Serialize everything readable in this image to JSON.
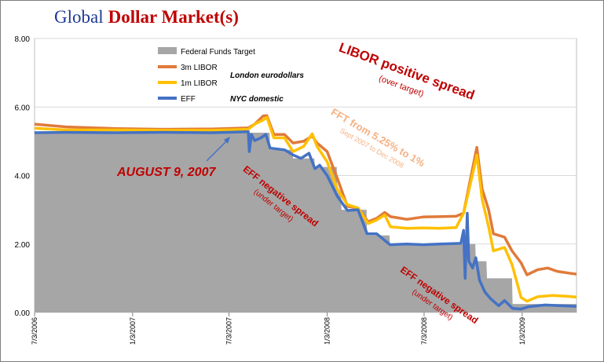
{
  "title": {
    "part1": "Global",
    "part2": "Dollar Market(s)"
  },
  "chart_data": {
    "type": "line",
    "y_axis": {
      "min": 0,
      "max": 8,
      "ticks": [
        "0.00",
        "2.00",
        "4.00",
        "6.00",
        "8.00"
      ]
    },
    "x_axis": {
      "start": "2006-07-03",
      "end": "2009-04-15",
      "ticks": [
        {
          "date": "2006-07-03",
          "label": "7/3/2006"
        },
        {
          "date": "2007-01-03",
          "label": "1/3/2007"
        },
        {
          "date": "2007-07-03",
          "label": "7/3/2007"
        },
        {
          "date": "2008-01-03",
          "label": "1/3/2008"
        },
        {
          "date": "2008-07-03",
          "label": "7/3/2008"
        },
        {
          "date": "2009-01-03",
          "label": "1/3/2009"
        }
      ]
    },
    "gridlines": "horizontal",
    "legend": {
      "placement": "top-left",
      "items": [
        {
          "series": "Federal Funds Target",
          "label": "Federal Funds Target",
          "note": ""
        },
        {
          "series": "3m LIBOR",
          "label": "3m LIBOR",
          "note": "London eurodollars"
        },
        {
          "series": "1m LIBOR",
          "label": "1m LIBOR",
          "note": ""
        },
        {
          "series": "EFF",
          "label": "EFF",
          "note": "NYC domestic"
        }
      ]
    },
    "series": [
      {
        "name": "Federal Funds Target",
        "style": "area",
        "color": "#a6a6a6",
        "points": [
          [
            "2006-07-03",
            5.25
          ],
          [
            "2007-09-17",
            5.25
          ],
          [
            "2007-09-18",
            4.75
          ],
          [
            "2007-10-30",
            4.75
          ],
          [
            "2007-10-31",
            4.5
          ],
          [
            "2007-12-10",
            4.5
          ],
          [
            "2007-12-11",
            4.25
          ],
          [
            "2008-01-21",
            4.25
          ],
          [
            "2008-01-22",
            3.5
          ],
          [
            "2008-01-29",
            3.5
          ],
          [
            "2008-01-30",
            3.0
          ],
          [
            "2008-03-17",
            3.0
          ],
          [
            "2008-03-18",
            2.25
          ],
          [
            "2008-04-29",
            2.25
          ],
          [
            "2008-04-30",
            2.0
          ],
          [
            "2008-10-07",
            2.0
          ],
          [
            "2008-10-08",
            1.5
          ],
          [
            "2008-10-28",
            1.5
          ],
          [
            "2008-10-29",
            1.0
          ],
          [
            "2008-12-15",
            1.0
          ],
          [
            "2008-12-16",
            0.25
          ],
          [
            "2009-04-15",
            0.25
          ]
        ]
      },
      {
        "name": "3m LIBOR",
        "style": "line",
        "color": "#e07a3a",
        "points": [
          [
            "2006-07-03",
            5.5
          ],
          [
            "2006-09-01",
            5.42
          ],
          [
            "2006-12-01",
            5.37
          ],
          [
            "2007-03-01",
            5.35
          ],
          [
            "2007-06-01",
            5.36
          ],
          [
            "2007-08-08",
            5.39
          ],
          [
            "2007-08-20",
            5.5
          ],
          [
            "2007-09-05",
            5.74
          ],
          [
            "2007-09-12",
            5.75
          ],
          [
            "2007-09-25",
            5.2
          ],
          [
            "2007-10-15",
            5.2
          ],
          [
            "2007-10-31",
            4.95
          ],
          [
            "2007-11-20",
            5.0
          ],
          [
            "2007-12-06",
            5.15
          ],
          [
            "2007-12-15",
            4.95
          ],
          [
            "2008-01-03",
            4.7
          ],
          [
            "2008-01-22",
            3.92
          ],
          [
            "2008-02-10",
            3.1
          ],
          [
            "2008-03-01",
            3.05
          ],
          [
            "2008-03-20",
            2.65
          ],
          [
            "2008-04-05",
            2.75
          ],
          [
            "2008-04-20",
            2.92
          ],
          [
            "2008-05-01",
            2.8
          ],
          [
            "2008-06-01",
            2.72
          ],
          [
            "2008-07-01",
            2.79
          ],
          [
            "2008-08-01",
            2.8
          ],
          [
            "2008-09-01",
            2.81
          ],
          [
            "2008-09-15",
            2.9
          ],
          [
            "2008-09-30",
            4.05
          ],
          [
            "2008-10-10",
            4.82
          ],
          [
            "2008-10-20",
            3.6
          ],
          [
            "2008-11-01",
            3.0
          ],
          [
            "2008-11-10",
            2.3
          ],
          [
            "2008-12-01",
            2.2
          ],
          [
            "2008-12-15",
            1.8
          ],
          [
            "2009-01-01",
            1.45
          ],
          [
            "2009-01-12",
            1.1
          ],
          [
            "2009-02-01",
            1.25
          ],
          [
            "2009-02-20",
            1.3
          ],
          [
            "2009-03-10",
            1.2
          ],
          [
            "2009-04-01",
            1.15
          ],
          [
            "2009-04-15",
            1.12
          ]
        ]
      },
      {
        "name": "1m LIBOR",
        "style": "line",
        "color": "#ffc000",
        "points": [
          [
            "2006-07-03",
            5.38
          ],
          [
            "2006-09-01",
            5.33
          ],
          [
            "2006-12-01",
            5.33
          ],
          [
            "2007-03-01",
            5.32
          ],
          [
            "2007-06-01",
            5.32
          ],
          [
            "2007-08-08",
            5.35
          ],
          [
            "2007-08-20",
            5.5
          ],
          [
            "2007-09-05",
            5.62
          ],
          [
            "2007-09-12",
            5.7
          ],
          [
            "2007-09-25",
            5.1
          ],
          [
            "2007-10-15",
            5.1
          ],
          [
            "2007-10-31",
            4.7
          ],
          [
            "2007-11-20",
            4.85
          ],
          [
            "2007-12-06",
            5.22
          ],
          [
            "2007-12-15",
            4.85
          ],
          [
            "2008-01-03",
            4.4
          ],
          [
            "2008-01-22",
            3.6
          ],
          [
            "2008-02-10",
            3.15
          ],
          [
            "2008-03-01",
            3.05
          ],
          [
            "2008-03-20",
            2.6
          ],
          [
            "2008-04-05",
            2.7
          ],
          [
            "2008-04-20",
            2.85
          ],
          [
            "2008-05-01",
            2.5
          ],
          [
            "2008-06-01",
            2.46
          ],
          [
            "2008-07-01",
            2.47
          ],
          [
            "2008-08-01",
            2.46
          ],
          [
            "2008-09-01",
            2.48
          ],
          [
            "2008-09-15",
            2.9
          ],
          [
            "2008-09-30",
            3.9
          ],
          [
            "2008-10-10",
            4.6
          ],
          [
            "2008-10-20",
            3.3
          ],
          [
            "2008-11-01",
            2.5
          ],
          [
            "2008-11-10",
            1.8
          ],
          [
            "2008-12-01",
            1.9
          ],
          [
            "2008-12-15",
            1.4
          ],
          [
            "2009-01-01",
            0.44
          ],
          [
            "2009-01-12",
            0.33
          ],
          [
            "2009-02-01",
            0.46
          ],
          [
            "2009-03-01",
            0.5
          ],
          [
            "2009-04-01",
            0.47
          ],
          [
            "2009-04-15",
            0.45
          ]
        ]
      },
      {
        "name": "EFF",
        "style": "line",
        "color": "#4472c4",
        "points": [
          [
            "2006-07-03",
            5.25
          ],
          [
            "2006-09-01",
            5.26
          ],
          [
            "2006-12-01",
            5.25
          ],
          [
            "2007-03-01",
            5.26
          ],
          [
            "2007-06-01",
            5.25
          ],
          [
            "2007-08-08",
            5.28
          ],
          [
            "2007-08-10",
            4.7
          ],
          [
            "2007-08-14",
            5.2
          ],
          [
            "2007-08-20",
            5.02
          ],
          [
            "2007-09-01",
            5.1
          ],
          [
            "2007-09-10",
            5.2
          ],
          [
            "2007-09-18",
            4.8
          ],
          [
            "2007-10-15",
            4.75
          ],
          [
            "2007-10-31",
            4.6
          ],
          [
            "2007-11-15",
            4.5
          ],
          [
            "2007-11-30",
            4.65
          ],
          [
            "2007-12-11",
            4.2
          ],
          [
            "2007-12-20",
            4.3
          ],
          [
            "2008-01-03",
            4.0
          ],
          [
            "2008-01-22",
            3.4
          ],
          [
            "2008-02-10",
            2.98
          ],
          [
            "2008-03-01",
            3.0
          ],
          [
            "2008-03-18",
            2.3
          ],
          [
            "2008-04-05",
            2.3
          ],
          [
            "2008-04-30",
            1.98
          ],
          [
            "2008-06-01",
            2.0
          ],
          [
            "2008-07-01",
            1.98
          ],
          [
            "2008-08-01",
            2.0
          ],
          [
            "2008-09-10",
            2.02
          ],
          [
            "2008-09-15",
            2.4
          ],
          [
            "2008-09-18",
            1.0
          ],
          [
            "2008-09-22",
            2.9
          ],
          [
            "2008-09-25",
            1.5
          ],
          [
            "2008-10-02",
            1.3
          ],
          [
            "2008-10-08",
            1.6
          ],
          [
            "2008-10-15",
            0.95
          ],
          [
            "2008-10-25",
            0.6
          ],
          [
            "2008-11-05",
            0.4
          ],
          [
            "2008-11-20",
            0.2
          ],
          [
            "2008-12-01",
            0.35
          ],
          [
            "2008-12-16",
            0.12
          ],
          [
            "2009-01-01",
            0.1
          ],
          [
            "2009-01-15",
            0.17
          ],
          [
            "2009-02-15",
            0.22
          ],
          [
            "2009-03-15",
            0.2
          ],
          [
            "2009-04-15",
            0.18
          ]
        ]
      }
    ],
    "annotations": [
      {
        "key": "aug9",
        "text": [
          "AUGUST 9, 2007"
        ],
        "color": "#c00000"
      },
      {
        "key": "libor_pos",
        "text": [
          "LIBOR positive spread",
          "(over target)"
        ],
        "color": "#c00000"
      },
      {
        "key": "fft",
        "text": [
          "FFT from 5.25% to 1%",
          "Sept 2007 to Dec 2008"
        ],
        "color": "#f4b183"
      },
      {
        "key": "eff_neg1",
        "text": [
          "EFF negative spread",
          "(under target)"
        ],
        "color": "#c00000"
      },
      {
        "key": "eff_neg2",
        "text": [
          "EFF negative spread",
          "(under target)"
        ],
        "color": "#c00000"
      }
    ]
  }
}
